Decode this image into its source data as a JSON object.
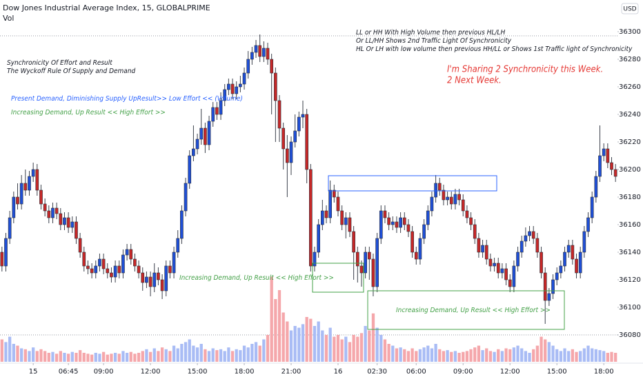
{
  "chart_data": {
    "type": "candlestick",
    "title": "Dow Jones Industrial Average Index, 15, GLOBALPRIME",
    "volume_label": "Vol",
    "currency": "USD",
    "annotations": {
      "rules": [
        "LL or HH With High Volume then previous HL/LH",
        "Or LL/HH Shows 2nd Traffic Light Of Synchronicity",
        "HL Or LH with low volume then previous HH/LL or Shows 1st Traffic light of Synchronicity"
      ],
      "heading": [
        "Synchronicity Of Effort and Result",
        "The Wyckoff Rule Of Supply and Demand"
      ],
      "sharing": [
        "I'm Sharing 2 Synchronicity this Week.",
        "2 Next Week."
      ],
      "present_demand": "Present Demand, Diminishing Supply UpResult>> Low Effort << (Volume)",
      "increasing_demand": [
        "Increasing Demand, Up Result << High  Effort >>",
        "Increasing Demand, Up Result << High  Effort >>",
        "Increasing Demand, Up Result << High  Effort >>"
      ]
    },
    "open": [
      36140,
      36130,
      36150,
      36165,
      36180,
      36175,
      36190,
      36185,
      36195,
      36200,
      36185,
      36175,
      36170,
      36165,
      36172,
      36168,
      36160,
      36165,
      36158,
      36162,
      36150,
      36140,
      36130,
      36128,
      36125,
      36130,
      36135,
      36128,
      36125,
      36122,
      36130,
      36125,
      36138,
      36142,
      36135,
      36130,
      36125,
      36118,
      36122,
      36115,
      36125,
      36120,
      36112,
      36130,
      36125,
      36140,
      36150,
      36170,
      36190,
      36210,
      36215,
      36222,
      36230,
      36218,
      36235,
      36245,
      36240,
      36250,
      36258,
      36262,
      36255,
      36260,
      36262,
      36270,
      36280,
      36285,
      36290,
      36282,
      36288,
      36280,
      36270,
      36250,
      36230,
      36215,
      36205,
      36220,
      36228,
      36238,
      36240,
      36200,
      36130,
      36140,
      36160,
      36170,
      36165,
      36185,
      36180,
      36170,
      36160,
      36165,
      36155,
      36140,
      36130,
      36125,
      36140,
      36135,
      36115,
      36150,
      36170,
      36165,
      36160,
      36162,
      36158,
      36165,
      36160,
      36155,
      36140,
      36135,
      36150,
      36160,
      36170,
      36180,
      36190,
      36185,
      36178,
      36180,
      36175,
      36182,
      36178,
      36170,
      36165,
      36160,
      36150,
      36140,
      36145,
      36135,
      36130,
      36132,
      36125,
      36128,
      36120,
      36115,
      36130,
      36140,
      36148,
      36152,
      36155,
      36150,
      36140,
      36125,
      36105,
      36110,
      36120,
      36125,
      36130,
      36140,
      36145,
      36135,
      36125,
      36140,
      36155,
      36165,
      36180,
      36195,
      36210,
      36215,
      36205,
      36200
    ],
    "high": [
      36144,
      36154,
      36170,
      36184,
      36190,
      36196,
      36200,
      36199,
      36205,
      36204,
      36189,
      36179,
      36174,
      36176,
      36176,
      36172,
      36169,
      36169,
      36166,
      36166,
      36154,
      36144,
      36134,
      36132,
      36134,
      36139,
      36139,
      36132,
      36129,
      36134,
      36134,
      36142,
      36146,
      36146,
      36139,
      36134,
      36129,
      36126,
      36126,
      36132,
      36129,
      36124,
      36134,
      36134,
      36144,
      36156,
      36174,
      36194,
      36214,
      36232,
      36226,
      36244,
      36234,
      36239,
      36249,
      36249,
      36256,
      36262,
      36266,
      36266,
      36264,
      36268,
      36274,
      36286,
      36289,
      36294,
      36298,
      36293,
      36292,
      36284,
      36274,
      36254,
      36234,
      36225,
      36224,
      36240,
      36242,
      36250,
      36244,
      36204,
      36144,
      36164,
      36178,
      36174,
      36192,
      36189,
      36184,
      36174,
      36169,
      36169,
      36159,
      36144,
      36134,
      36144,
      36144,
      36139,
      36154,
      36174,
      36174,
      36169,
      36166,
      36166,
      36169,
      36169,
      36164,
      36159,
      36144,
      36154,
      36164,
      36174,
      36184,
      36196,
      36194,
      36189,
      36184,
      36184,
      36186,
      36186,
      36182,
      36174,
      36169,
      36164,
      36154,
      36149,
      36149,
      36139,
      36136,
      36136,
      36132,
      36132,
      36124,
      36134,
      36144,
      36152,
      36158,
      36159,
      36159,
      36154,
      36144,
      36129,
      36114,
      36124,
      36129,
      36134,
      36144,
      36149,
      36149,
      36139,
      36144,
      36159,
      36169,
      36184,
      36199,
      36232,
      36219,
      36219,
      36209,
      36204
    ],
    "low": [
      36126,
      36126,
      36146,
      36161,
      36171,
      36171,
      36181,
      36181,
      36191,
      36181,
      36171,
      36166,
      36161,
      36161,
      36164,
      36156,
      36156,
      36154,
      36154,
      36146,
      36136,
      36126,
      36124,
      36121,
      36121,
      36126,
      36124,
      36121,
      36118,
      36118,
      36121,
      36121,
      36134,
      36131,
      36126,
      36121,
      36112,
      36114,
      36108,
      36111,
      36116,
      36106,
      36108,
      36121,
      36121,
      36136,
      36146,
      36166,
      36186,
      36206,
      36211,
      36218,
      36212,
      36214,
      36231,
      36236,
      36236,
      36246,
      36254,
      36251,
      36251,
      36256,
      36258,
      36266,
      36276,
      36281,
      36278,
      36278,
      36276,
      36240,
      36220,
      36220,
      36200,
      36180,
      36196,
      36216,
      36224,
      36230,
      36190,
      36126,
      36126,
      36136,
      36156,
      36161,
      36161,
      36176,
      36166,
      36156,
      36150,
      36151,
      36120,
      36118,
      36115,
      36121,
      36120,
      36108,
      36111,
      36146,
      36161,
      36156,
      36156,
      36154,
      36154,
      36156,
      36151,
      36136,
      36131,
      36131,
      36146,
      36156,
      36166,
      36176,
      36181,
      36174,
      36174,
      36171,
      36171,
      36174,
      36166,
      36161,
      36156,
      36146,
      36136,
      36136,
      36131,
      36126,
      36126,
      36121,
      36121,
      36116,
      36111,
      36111,
      36126,
      36136,
      36144,
      36148,
      36146,
      36136,
      36121,
      36088,
      36101,
      36106,
      36116,
      36121,
      36126,
      36136,
      36131,
      36121,
      36121,
      36136,
      36151,
      36161,
      36176,
      36191,
      36206,
      36201,
      36196,
      36191
    ],
    "close": [
      36130,
      36150,
      36165,
      36180,
      36175,
      36190,
      36185,
      36195,
      36200,
      36185,
      36175,
      36170,
      36165,
      36172,
      36168,
      36160,
      36165,
      36158,
      36162,
      36150,
      36140,
      36130,
      36128,
      36125,
      36130,
      36135,
      36128,
      36125,
      36122,
      36130,
      36125,
      36138,
      36142,
      36135,
      36130,
      36125,
      36118,
      36122,
      36115,
      36125,
      36120,
      36112,
      36130,
      36125,
      36140,
      36150,
      36170,
      36190,
      36210,
      36215,
      36222,
      36230,
      36218,
      36235,
      36245,
      36240,
      36250,
      36258,
      36262,
      36255,
      36260,
      36262,
      36270,
      36280,
      36285,
      36290,
      36282,
      36288,
      36280,
      36270,
      36250,
      36230,
      36215,
      36205,
      36220,
      36228,
      36238,
      36240,
      36200,
      36130,
      36140,
      36160,
      36170,
      36165,
      36185,
      36180,
      36170,
      36160,
      36165,
      36155,
      36140,
      36130,
      36125,
      36140,
      36135,
      36115,
      36150,
      36170,
      36165,
      36160,
      36162,
      36158,
      36165,
      36160,
      36155,
      36140,
      36135,
      36150,
      36160,
      36170,
      36180,
      36190,
      36185,
      36178,
      36180,
      36175,
      36182,
      36178,
      36170,
      36165,
      36160,
      36150,
      36140,
      36145,
      36135,
      36130,
      36132,
      36125,
      36128,
      36120,
      36115,
      36130,
      36140,
      36148,
      36152,
      36155,
      36150,
      36140,
      36125,
      36105,
      36110,
      36120,
      36125,
      36130,
      36140,
      36145,
      36135,
      36125,
      36140,
      36155,
      36165,
      36180,
      36195,
      36210,
      36215,
      36205,
      36200,
      36195
    ],
    "volume": [
      25,
      22,
      28,
      20,
      18,
      15,
      14,
      12,
      16,
      12,
      14,
      12,
      10,
      11,
      9,
      12,
      10,
      9,
      11,
      10,
      13,
      10,
      9,
      8,
      10,
      9,
      11,
      8,
      9,
      10,
      9,
      12,
      10,
      11,
      9,
      10,
      12,
      14,
      11,
      15,
      12,
      16,
      14,
      12,
      18,
      15,
      20,
      22,
      25,
      18,
      16,
      20,
      14,
      12,
      15,
      13,
      14,
      12,
      16,
      12,
      14,
      13,
      18,
      16,
      20,
      22,
      18,
      25,
      30,
      95,
      70,
      80,
      55,
      45,
      35,
      40,
      38,
      42,
      50,
      48,
      40,
      45,
      35,
      30,
      38,
      28,
      30,
      25,
      28,
      22,
      30,
      28,
      32,
      40,
      35,
      54,
      38,
      30,
      25,
      20,
      18,
      15,
      16,
      14,
      12,
      15,
      12,
      14,
      16,
      18,
      15,
      20,
      14,
      12,
      13,
      11,
      12,
      10,
      11,
      12,
      14,
      16,
      18,
      13,
      15,
      12,
      11,
      14,
      12,
      15,
      14,
      16,
      18,
      15,
      12,
      10,
      14,
      18,
      28,
      25,
      22,
      18,
      14,
      12,
      15,
      12,
      14,
      11,
      12,
      15,
      18,
      15,
      14,
      13,
      12,
      10,
      11,
      10
    ],
    "up_color": "#1f4fd6",
    "down_color": "#c62828",
    "wick_color": "#3a3f4a",
    "volume_up_color": "#a9bcf5",
    "volume_down_color": "#f5a7ab",
    "xlim": [
      -0.5,
      157.5
    ],
    "xticks": [
      {
        "value": 8,
        "label": "15"
      },
      {
        "value": 17,
        "label": "06:45"
      },
      {
        "value": 26,
        "label": "09:00"
      },
      {
        "value": 38,
        "label": "12:00"
      },
      {
        "value": 50,
        "label": "15:00"
      },
      {
        "value": 62,
        "label": "18:00"
      },
      {
        "value": 74,
        "label": "21:00"
      },
      {
        "value": 86,
        "label": "16"
      },
      {
        "value": 96,
        "label": "02:30"
      },
      {
        "value": 106,
        "label": "06:00"
      },
      {
        "value": 118,
        "label": "09:00"
      },
      {
        "value": 130,
        "label": "12:00"
      },
      {
        "value": 142,
        "label": "15:00"
      },
      {
        "value": 154,
        "label": "18:00"
      }
    ],
    "ylim": [
      36060.5,
      36323
    ],
    "yticks": [
      36080,
      36100,
      36120,
      36140,
      36160,
      36180,
      36200,
      36220,
      36240,
      36260,
      36280,
      36300
    ],
    "vlim": [
      0,
      100
    ],
    "grid": false
  }
}
